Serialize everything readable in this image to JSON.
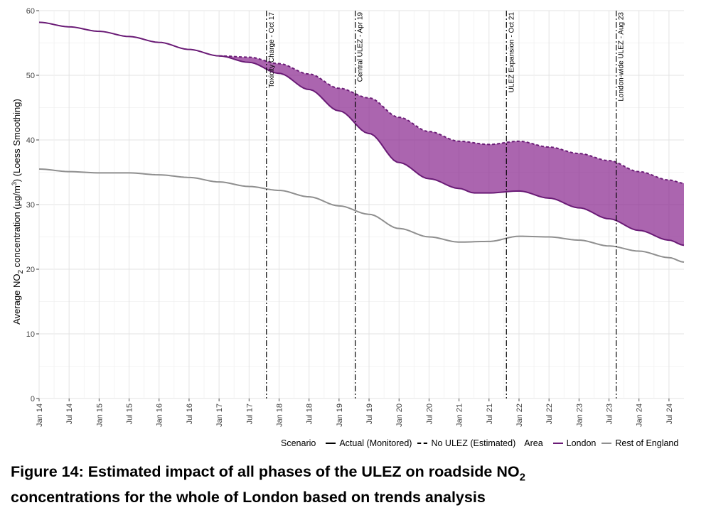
{
  "chart_data": {
    "type": "area",
    "ylabel_pre": "Average NO",
    "ylabel_sub": "2",
    "ylabel_mid": " concentration (µg/m",
    "ylabel_sup": "3",
    "ylabel_post": ") (Loess Smoothing)",
    "ylim": [
      0,
      60
    ],
    "yticks": [
      0,
      10,
      20,
      30,
      40,
      50,
      60
    ],
    "xlim": [
      2014.0,
      2024.75
    ],
    "xticks": [
      {
        "x": 2014.0,
        "label": "Jan 14"
      },
      {
        "x": 2014.5,
        "label": "Jul 14"
      },
      {
        "x": 2015.0,
        "label": "Jan 15"
      },
      {
        "x": 2015.5,
        "label": "Jul 15"
      },
      {
        "x": 2016.0,
        "label": "Jan 16"
      },
      {
        "x": 2016.5,
        "label": "Jul 16"
      },
      {
        "x": 2017.0,
        "label": "Jan 17"
      },
      {
        "x": 2017.5,
        "label": "Jul 17"
      },
      {
        "x": 2018.0,
        "label": "Jan 18"
      },
      {
        "x": 2018.5,
        "label": "Jul 18"
      },
      {
        "x": 2019.0,
        "label": "Jan 19"
      },
      {
        "x": 2019.5,
        "label": "Jul 19"
      },
      {
        "x": 2020.0,
        "label": "Jan 20"
      },
      {
        "x": 2020.5,
        "label": "Jul 20"
      },
      {
        "x": 2021.0,
        "label": "Jan 21"
      },
      {
        "x": 2021.5,
        "label": "Jul 21"
      },
      {
        "x": 2022.0,
        "label": "Jan 22"
      },
      {
        "x": 2022.5,
        "label": "Jul 22"
      },
      {
        "x": 2023.0,
        "label": "Jan 23"
      },
      {
        "x": 2023.5,
        "label": "Jul 23"
      },
      {
        "x": 2024.0,
        "label": "Jan 24"
      },
      {
        "x": 2024.5,
        "label": "Jul 24"
      }
    ],
    "series": [
      {
        "name": "London - Actual (Monitored)",
        "area": "London",
        "scenario": "Actual (Monitored)",
        "color": "#6a1b76",
        "dash": "solid",
        "points": [
          [
            2014.0,
            58.2
          ],
          [
            2014.5,
            57.5
          ],
          [
            2015.0,
            56.8
          ],
          [
            2015.5,
            56.0
          ],
          [
            2016.0,
            55.1
          ],
          [
            2016.5,
            54.0
          ],
          [
            2017.0,
            53.0
          ],
          [
            2017.5,
            52.0
          ],
          [
            2018.0,
            50.3
          ],
          [
            2018.5,
            47.8
          ],
          [
            2019.0,
            44.5
          ],
          [
            2019.5,
            41.0
          ],
          [
            2020.0,
            36.5
          ],
          [
            2020.5,
            34.0
          ],
          [
            2021.0,
            32.5
          ],
          [
            2021.25,
            31.8
          ],
          [
            2021.5,
            31.8
          ],
          [
            2022.0,
            32.1
          ],
          [
            2022.5,
            31.0
          ],
          [
            2023.0,
            29.5
          ],
          [
            2023.5,
            27.8
          ],
          [
            2024.0,
            26.0
          ],
          [
            2024.5,
            24.5
          ],
          [
            2024.75,
            23.7
          ]
        ]
      },
      {
        "name": "London - No ULEZ (Estimated)",
        "area": "London",
        "scenario": "No ULEZ (Estimated)",
        "color": "#6a1b76",
        "dash": "dashed",
        "points": [
          [
            2017.0,
            53.0
          ],
          [
            2017.5,
            52.8
          ],
          [
            2018.0,
            51.8
          ],
          [
            2018.5,
            50.2
          ],
          [
            2019.0,
            48.0
          ],
          [
            2019.5,
            46.5
          ],
          [
            2020.0,
            43.5
          ],
          [
            2020.5,
            41.3
          ],
          [
            2021.0,
            39.8
          ],
          [
            2021.5,
            39.3
          ],
          [
            2022.0,
            39.8
          ],
          [
            2022.5,
            38.9
          ],
          [
            2023.0,
            37.9
          ],
          [
            2023.5,
            36.8
          ],
          [
            2024.0,
            35.1
          ],
          [
            2024.5,
            33.8
          ],
          [
            2024.75,
            33.3
          ]
        ]
      },
      {
        "name": "Rest of England - Actual (Monitored)",
        "area": "Rest of England",
        "scenario": "Actual (Monitored)",
        "color": "#8f8f8f",
        "dash": "solid",
        "points": [
          [
            2014.0,
            35.5
          ],
          [
            2014.5,
            35.1
          ],
          [
            2015.0,
            34.9
          ],
          [
            2015.5,
            34.9
          ],
          [
            2016.0,
            34.6
          ],
          [
            2016.5,
            34.2
          ],
          [
            2017.0,
            33.5
          ],
          [
            2017.5,
            32.8
          ],
          [
            2018.0,
            32.2
          ],
          [
            2018.5,
            31.2
          ],
          [
            2019.0,
            29.8
          ],
          [
            2019.5,
            28.5
          ],
          [
            2020.0,
            26.3
          ],
          [
            2020.5,
            25.0
          ],
          [
            2021.0,
            24.2
          ],
          [
            2021.5,
            24.3
          ],
          [
            2022.0,
            25.1
          ],
          [
            2022.5,
            25.0
          ],
          [
            2023.0,
            24.5
          ],
          [
            2023.5,
            23.6
          ],
          [
            2024.0,
            22.8
          ],
          [
            2024.5,
            21.8
          ],
          [
            2024.75,
            21.1
          ]
        ]
      }
    ],
    "shaded_area": {
      "from_series": "London - Actual (Monitored)",
      "to_series": "London - No ULEZ (Estimated)",
      "color": "#8a2a90",
      "opacity": 0.72
    },
    "annotations": [
      {
        "x": 2017.79,
        "label": "Toxicity Charge - Oct 17"
      },
      {
        "x": 2019.27,
        "label": "Central ULEZ - Apr 19"
      },
      {
        "x": 2021.79,
        "label": "ULEZ Expansion - Oct 21"
      },
      {
        "x": 2023.62,
        "label": "London-wide ULEZ - Aug 23"
      }
    ],
    "grid": true,
    "legend_position": "bottom-right"
  },
  "legend": {
    "scenario_title": "Scenario",
    "scenario_actual": "Actual (Monitored)",
    "scenario_noulez": "No ULEZ (Estimated)",
    "area_title": "Area",
    "area_london": "London",
    "area_rest": "Rest of England",
    "color_london": "#6a1b76",
    "color_rest": "#8f8f8f"
  },
  "caption": {
    "line1_pre": "Figure 14: Estimated impact of all phases of the ULEZ on roadside NO",
    "line1_sub": "2",
    "line2": "concentrations for the whole of London based on trends analysis"
  }
}
